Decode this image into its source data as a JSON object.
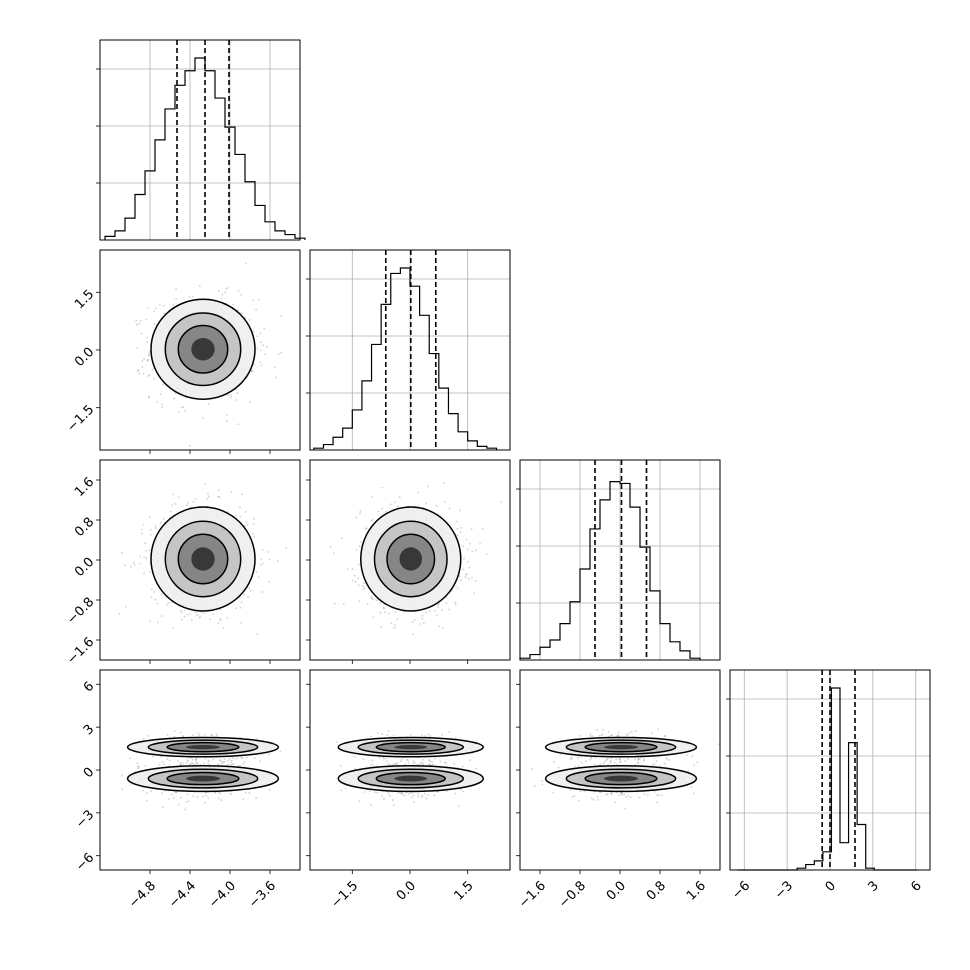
{
  "chart_data": {
    "type": "corner",
    "n_params": 4,
    "labels": [
      "",
      "",
      "",
      ""
    ],
    "grid": true,
    "axis_ranges": [
      [
        -5.3,
        -3.3
      ],
      [
        -2.6,
        2.6
      ],
      [
        -2.0,
        2.0
      ],
      [
        -7.0,
        7.0
      ]
    ],
    "ticks": [
      [
        -4.8,
        -4.4,
        -4.0,
        -3.6
      ],
      [
        -1.5,
        0.0,
        1.5
      ],
      [
        -1.6,
        -0.8,
        0.0,
        0.8,
        1.6
      ],
      [
        -6,
        -3,
        0,
        3,
        6
      ]
    ],
    "tick_labels": [
      [
        "−4.8",
        "−4.4",
        "−4.0",
        "−3.6"
      ],
      [
        "−1.5",
        "0.0",
        "1.5"
      ],
      [
        "−1.6",
        "−0.8",
        "0.0",
        "0.8",
        "1.6"
      ],
      [
        "−6",
        "−3",
        "0",
        "3",
        "6"
      ]
    ],
    "quantiles": [
      [
        -4.53,
        -4.25,
        -4.01
      ],
      [
        -0.63,
        0.02,
        0.67
      ],
      [
        -0.5,
        0.03,
        0.53
      ],
      [
        -0.55,
        0.0,
        1.75
      ]
    ],
    "histograms": [
      {
        "edges_start": -5.25,
        "bin_width": 0.1,
        "counts": [
          0.02,
          0.05,
          0.12,
          0.25,
          0.38,
          0.55,
          0.72,
          0.85,
          0.93,
          1.0,
          0.93,
          0.78,
          0.62,
          0.47,
          0.32,
          0.19,
          0.1,
          0.05,
          0.03,
          0.01
        ]
      },
      {
        "edges_start": -2.5,
        "bin_width": 0.25,
        "counts": [
          0.01,
          0.03,
          0.07,
          0.12,
          0.22,
          0.38,
          0.58,
          0.8,
          0.97,
          1.0,
          0.9,
          0.74,
          0.53,
          0.34,
          0.2,
          0.1,
          0.05,
          0.02,
          0.01
        ]
      },
      {
        "edges_start": -2.0,
        "bin_width": 0.2,
        "counts": [
          0.01,
          0.03,
          0.07,
          0.11,
          0.2,
          0.32,
          0.5,
          0.72,
          0.88,
          0.98,
          0.97,
          0.84,
          0.62,
          0.38,
          0.2,
          0.1,
          0.05,
          0.01
        ]
      },
      {
        "edges_start": -6.5,
        "bin_width": 0.6,
        "counts": [
          0.0,
          0.0,
          0.0,
          0.0,
          0.0,
          0.0,
          0.0,
          0.01,
          0.03,
          0.05,
          0.1,
          1.0,
          0.15,
          0.7,
          0.25,
          0.01,
          0.0,
          0.0,
          0.0,
          0.0,
          0.0
        ]
      }
    ],
    "gaussians": [
      {
        "mean": -4.27,
        "sigma": 0.26
      },
      {
        "mean": 0.02,
        "sigma": 0.65
      },
      {
        "mean": 0.02,
        "sigma": 0.52
      },
      {
        "modes": [
          {
            "mean": -0.6,
            "sigma": 0.6
          },
          {
            "mean": 1.6,
            "sigma": 0.45
          }
        ]
      }
    ]
  }
}
